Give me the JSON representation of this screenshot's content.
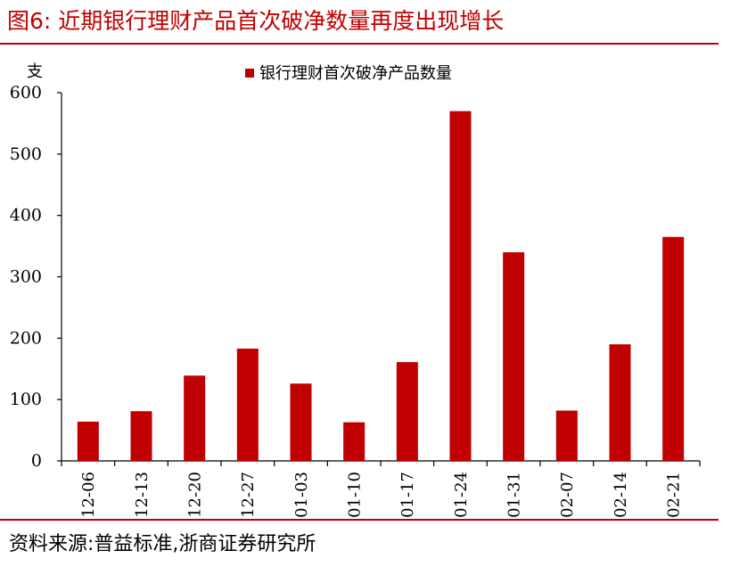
{
  "figure": {
    "title": "图6:  近期银行理财产品首次破净数量再度出现增长",
    "source": "资料来源:普益标准,浙商证券研究所"
  },
  "colors": {
    "accent": "#c00000",
    "bar": "#c00000"
  },
  "chart_data": {
    "type": "bar",
    "title": "",
    "xlabel": "",
    "ylabel": "支",
    "categories": [
      "12-06",
      "12-13",
      "12-20",
      "12-27",
      "01-03",
      "01-10",
      "01-17",
      "01-24",
      "01-31",
      "02-07",
      "02-14",
      "02-21"
    ],
    "series": [
      {
        "name": "银行理财首次破净产品数量",
        "values": [
          64,
          81,
          139,
          183,
          126,
          63,
          161,
          570,
          340,
          82,
          190,
          365
        ]
      }
    ],
    "ylim": [
      0,
      600
    ],
    "yticks": [
      0,
      100,
      200,
      300,
      400,
      500,
      600
    ],
    "legend": "top-center",
    "grid": false
  }
}
